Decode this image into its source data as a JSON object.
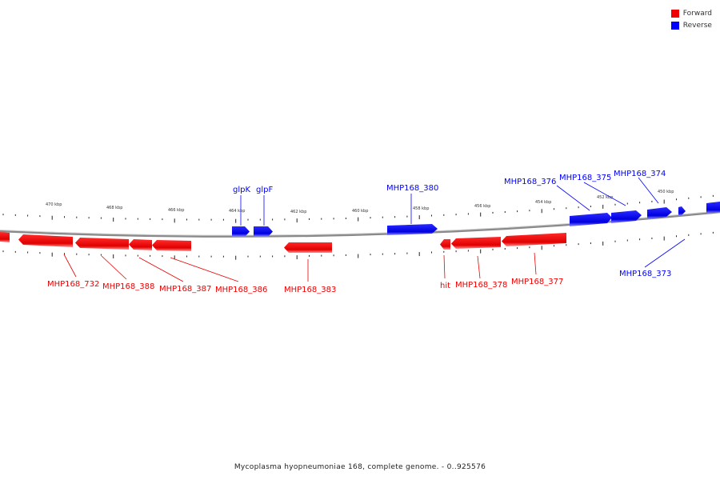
{
  "colors": {
    "forward": "#ee0000",
    "reverse": "#0000ff",
    "backbone": "#888888"
  },
  "legend": [
    {
      "label": "Forward",
      "color": "#ee0000",
      "icon": "red-square"
    },
    {
      "label": "Reverse",
      "color": "#0000ff",
      "icon": "blue-square"
    }
  ],
  "footer": "Mycoplasma hyopneumoniae 168, complete genome. - 0..925576",
  "scale_labels": [
    "470 kbp",
    "468 kbp",
    "466 kbp",
    "464 kbp",
    "462 kbp",
    "460 kbp",
    "458 kbp",
    "456 kbp",
    "454 kbp",
    "452 kbp",
    "450 kbp"
  ],
  "gene_labels": [
    "glpK",
    "glpF",
    "MHP168_380",
    "MHP168_376",
    "MHP168_375",
    "MHP168_374",
    "MHP168_373",
    "MHP168_732",
    "MHP168_388",
    "MHP168_387",
    "MHP168_386",
    "MHP168_383",
    "hit",
    "MHP168_378",
    "MHP168_377"
  ]
}
